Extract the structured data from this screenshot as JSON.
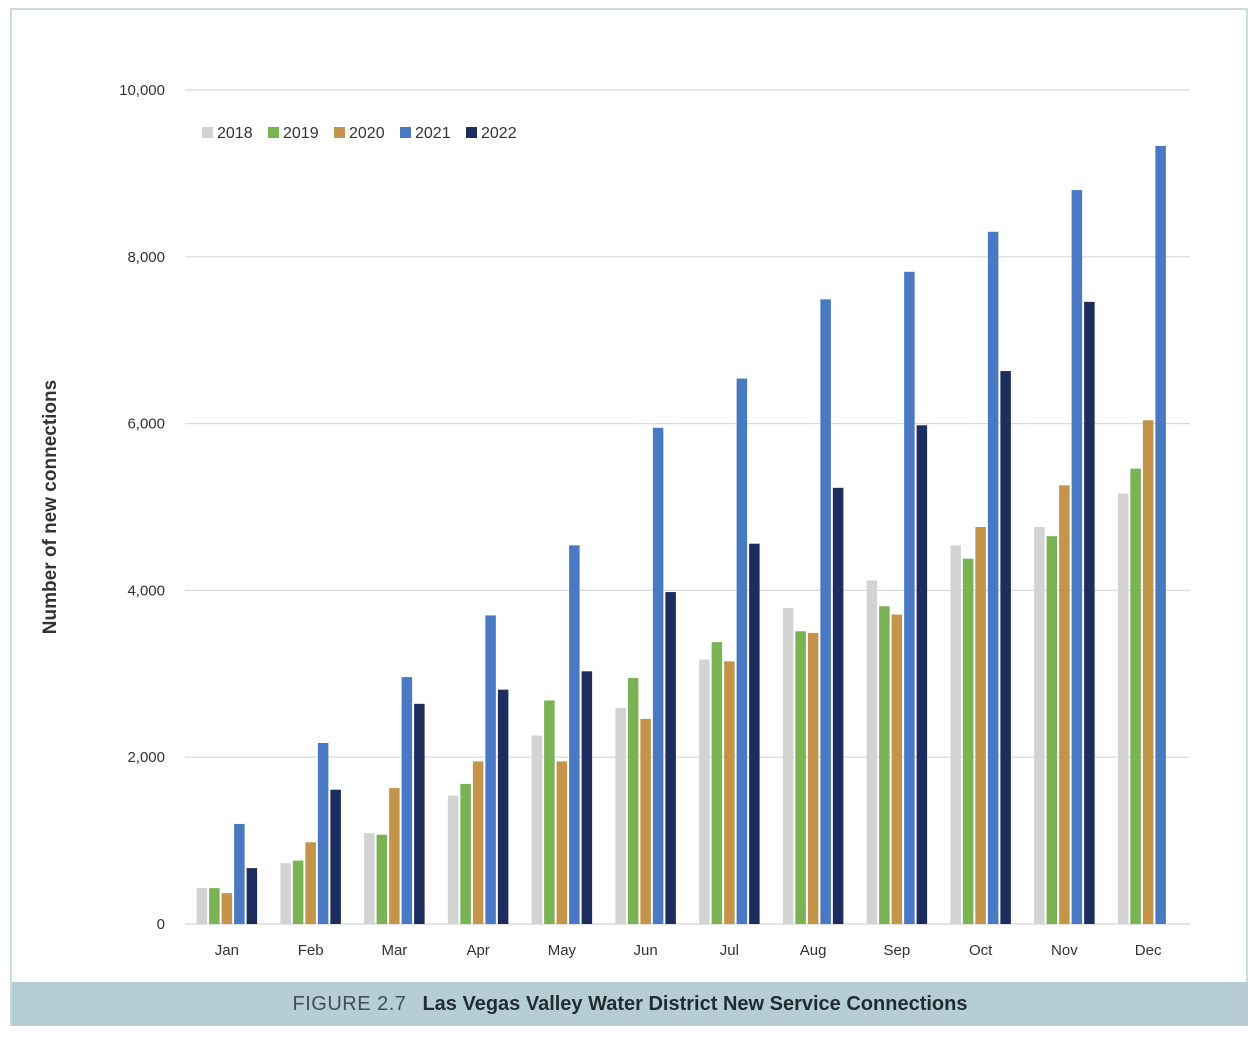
{
  "figure": {
    "label": "FIGURE 2.7",
    "title": "Las Vegas Valley Water District New Service Connections"
  },
  "chart_data": {
    "type": "bar",
    "title": "Las Vegas Valley Water District New Service Connections",
    "xlabel": "",
    "ylabel": "Number of new connections",
    "ylim": [
      0,
      10000
    ],
    "yticks": [
      0,
      2000,
      4000,
      6000,
      8000,
      10000
    ],
    "ytick_labels": [
      "0",
      "2,000",
      "4,000",
      "6,000",
      "8,000",
      "10,000"
    ],
    "grid": true,
    "legend_position": "top-left",
    "categories": [
      "Jan",
      "Feb",
      "Mar",
      "Apr",
      "May",
      "Jun",
      "Jul",
      "Aug",
      "Sep",
      "Oct",
      "Nov",
      "Dec"
    ],
    "series": [
      {
        "name": "2018",
        "color": "#d3d3d3",
        "values": [
          430,
          730,
          1090,
          1540,
          2260,
          2590,
          3170,
          3790,
          4120,
          4540,
          4760,
          5160
        ]
      },
      {
        "name": "2019",
        "color": "#79b354",
        "values": [
          430,
          760,
          1070,
          1680,
          2680,
          2950,
          3380,
          3510,
          3810,
          4380,
          4650,
          5460
        ]
      },
      {
        "name": "2020",
        "color": "#c4944a",
        "values": [
          370,
          980,
          1630,
          1950,
          1950,
          2460,
          3150,
          3490,
          3710,
          4760,
          5260,
          6040
        ]
      },
      {
        "name": "2021",
        "color": "#4a79c3",
        "values": [
          1200,
          2170,
          2960,
          3700,
          4540,
          5950,
          6540,
          7490,
          7820,
          8300,
          8800,
          9330
        ]
      },
      {
        "name": "2022",
        "color": "#1d2d5e",
        "values": [
          670,
          1610,
          2640,
          2810,
          3030,
          3980,
          4560,
          5230,
          5980,
          6630,
          7460,
          null
        ]
      }
    ]
  }
}
